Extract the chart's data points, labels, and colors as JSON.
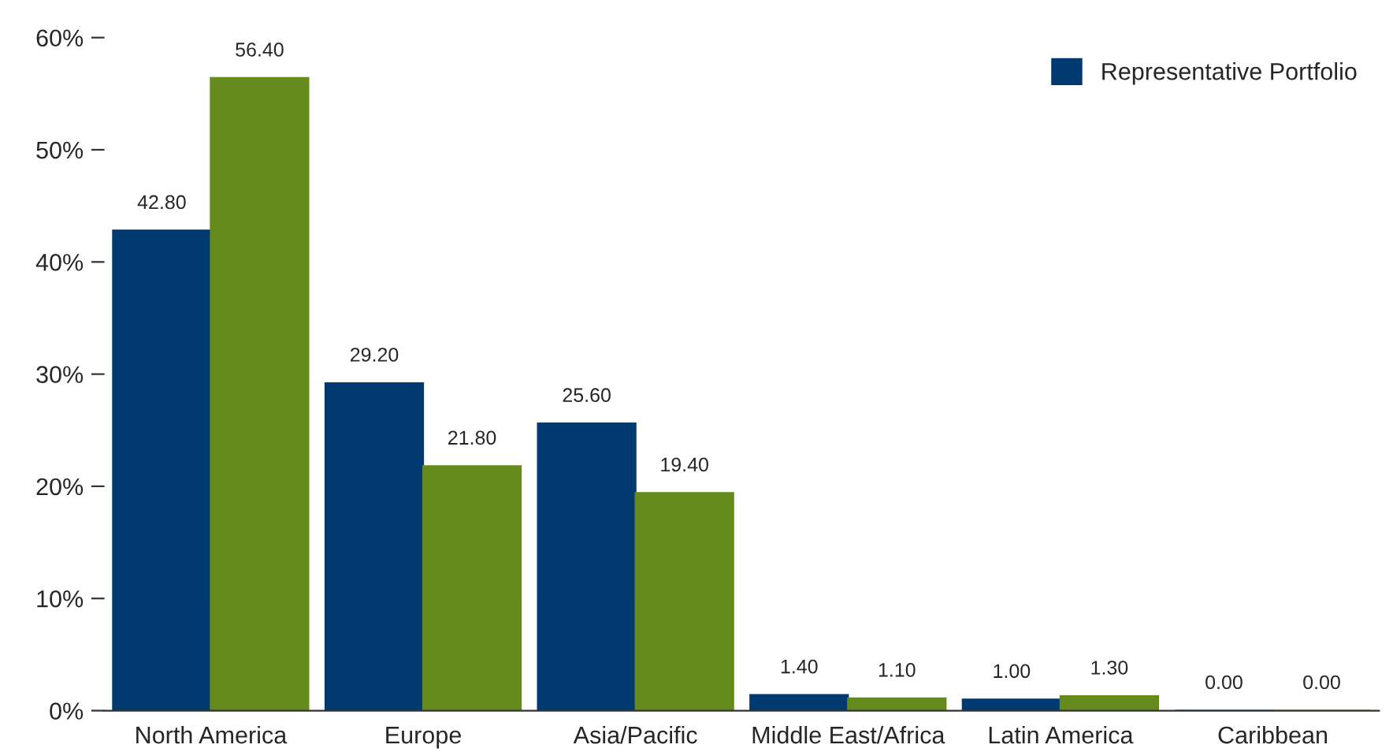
{
  "chart_data": {
    "type": "bar",
    "categories": [
      "North America",
      "Europe",
      "Asia/Pacific",
      "Middle East/Africa",
      "Latin America",
      "Caribbean"
    ],
    "series": [
      {
        "name": "Representative Portfolio",
        "color": "#003a70",
        "values": [
          42.8,
          29.2,
          25.6,
          1.4,
          1.0,
          0.0
        ],
        "value_labels": [
          "42.80",
          "29.20",
          "25.60",
          "1.40",
          "1.00",
          "0.00"
        ]
      },
      {
        "color": "#658b1c",
        "values": [
          56.4,
          21.8,
          19.4,
          1.1,
          1.3,
          0.0
        ],
        "value_labels": [
          "56.40",
          "21.80",
          "19.40",
          "1.10",
          "1.30",
          "0.00"
        ]
      }
    ],
    "ylim": [
      0,
      60
    ],
    "yticks": [
      {
        "value": 0,
        "label": "0%"
      },
      {
        "value": 10,
        "label": "10%"
      },
      {
        "value": 20,
        "label": "20%"
      },
      {
        "value": 30,
        "label": "30%"
      },
      {
        "value": 40,
        "label": "40%"
      },
      {
        "value": 50,
        "label": "50%"
      },
      {
        "value": 60,
        "label": "60%"
      }
    ],
    "legend": "top right",
    "grid": false
  }
}
